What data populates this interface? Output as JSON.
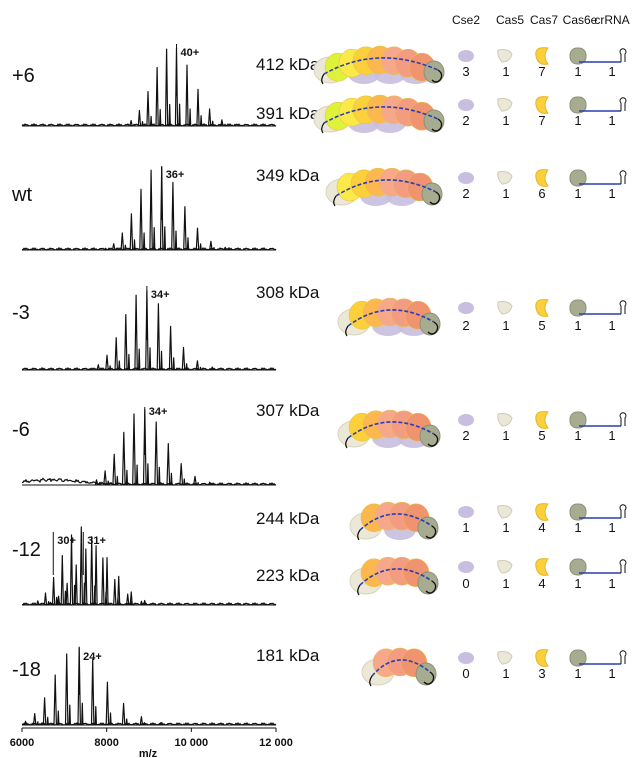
{
  "headers": [
    "Cse2",
    "Cas5",
    "Cas7",
    "Cas6e",
    "crRNA"
  ],
  "axis": {
    "ticks": [
      "6000",
      "8000",
      "10 000",
      "12 000"
    ],
    "xlabel": "m/z"
  },
  "colors": {
    "cse2": "#c8bedf",
    "cas5": "#ece8d8",
    "cas6e": "#a7ab8f",
    "cas7_seq": [
      "#dff23a",
      "#fbe94a",
      "#fcd03a",
      "#fcb84e",
      "#f7a88a",
      "#f39c82",
      "#f0936f"
    ],
    "crRNA": "#2a3fb0"
  },
  "rows": [
    {
      "variant": "+6",
      "peaks": [
        "40+"
      ],
      "complexes": [
        {
          "mass": "412 kDa",
          "counts": [
            "3",
            "1",
            "7",
            "1",
            "1"
          ]
        },
        {
          "mass": "391 kDa",
          "counts": [
            "2",
            "1",
            "7",
            "1",
            "1"
          ]
        }
      ]
    },
    {
      "variant": "wt",
      "peaks": [
        "36+"
      ],
      "complexes": [
        {
          "mass": "349 kDa",
          "counts": [
            "2",
            "1",
            "6",
            "1",
            "1"
          ]
        }
      ]
    },
    {
      "variant": "-3",
      "peaks": [
        "34+"
      ],
      "complexes": [
        {
          "mass": "308 kDa",
          "counts": [
            "2",
            "1",
            "5",
            "1",
            "1"
          ]
        }
      ]
    },
    {
      "variant": "-6",
      "peaks": [
        "34+"
      ],
      "complexes": [
        {
          "mass": "307 kDa",
          "counts": [
            "2",
            "1",
            "5",
            "1",
            "1"
          ]
        }
      ]
    },
    {
      "variant": "-12",
      "peaks": [
        "30+",
        "31+"
      ],
      "complexes": [
        {
          "mass": "244 kDa",
          "counts": [
            "1",
            "1",
            "4",
            "1",
            "1"
          ]
        },
        {
          "mass": "223 kDa",
          "counts": [
            "0",
            "1",
            "4",
            "1",
            "1"
          ]
        }
      ]
    },
    {
      "variant": "-18",
      "peaks": [
        "24+"
      ],
      "complexes": [
        {
          "mass": "181 kDa",
          "counts": [
            "0",
            "1",
            "3",
            "1",
            "1"
          ]
        }
      ]
    }
  ]
}
